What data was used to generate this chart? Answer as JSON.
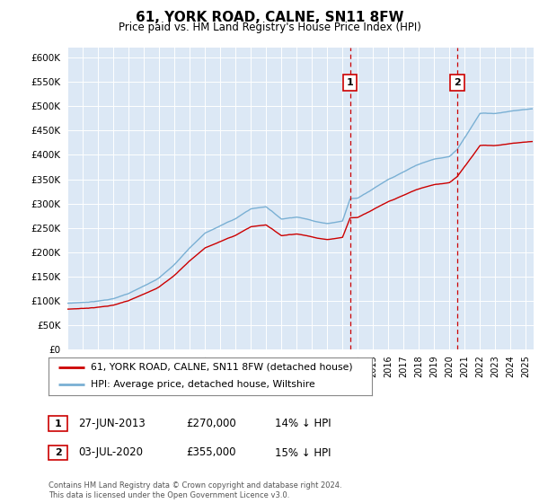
{
  "title": "61, YORK ROAD, CALNE, SN11 8FW",
  "subtitle": "Price paid vs. HM Land Registry's House Price Index (HPI)",
  "legend_line1": "61, YORK ROAD, CALNE, SN11 8FW (detached house)",
  "legend_line2": "HPI: Average price, detached house, Wiltshire",
  "annotation1_label": "1",
  "annotation1_date": "27-JUN-2013",
  "annotation1_price": "£270,000",
  "annotation1_hpi": "14% ↓ HPI",
  "annotation2_label": "2",
  "annotation2_date": "03-JUL-2020",
  "annotation2_price": "£355,000",
  "annotation2_hpi": "15% ↓ HPI",
  "footer": "Contains HM Land Registry data © Crown copyright and database right 2024.\nThis data is licensed under the Open Government Licence v3.0.",
  "hpi_color": "#7ab0d4",
  "price_color": "#cc0000",
  "vline_color": "#cc0000",
  "background_color": "#dce8f5",
  "annotation_box_color": "#cc0000",
  "ylim": [
    0,
    620000
  ],
  "yticks": [
    0,
    50000,
    100000,
    150000,
    200000,
    250000,
    300000,
    350000,
    400000,
    450000,
    500000,
    550000,
    600000
  ],
  "purchase1_year": 2013.49,
  "purchase2_year": 2020.51,
  "purchase1_price": 270000,
  "purchase2_price": 355000
}
